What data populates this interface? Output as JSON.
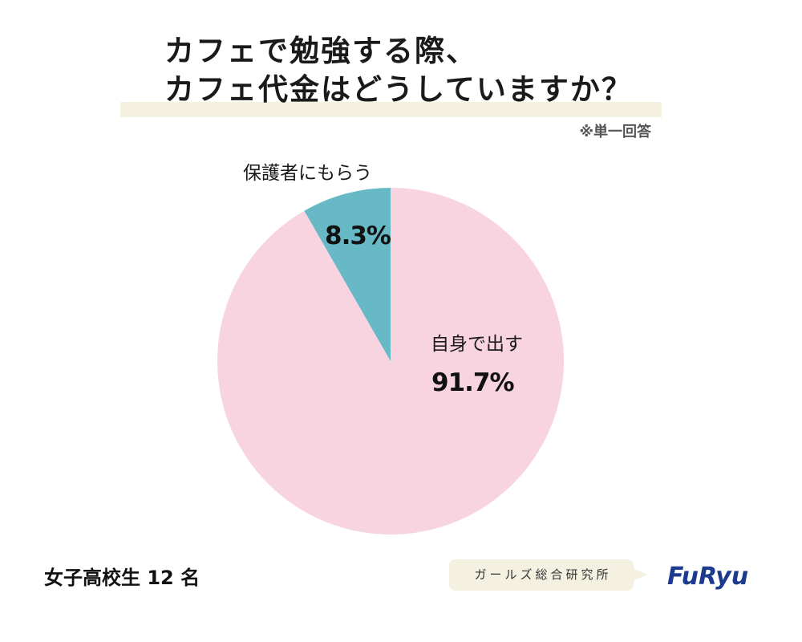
{
  "chart_data": {
    "type": "pie",
    "title": [
      "カフェで勉強する際、",
      "カフェ代金はどうしていますか？"
    ],
    "categories": [
      "自身で出す",
      "保護者にもらう"
    ],
    "values": [
      91.7,
      8.3
    ],
    "unit": "%",
    "colors": [
      "#f8d4e1",
      "#67b9c5"
    ],
    "legend": "none"
  },
  "note": "※単一回答",
  "sample_label": "女子高校生 12 名",
  "source": {
    "label": "ガールズ総合研究所",
    "logo_text": "FuRyu"
  }
}
